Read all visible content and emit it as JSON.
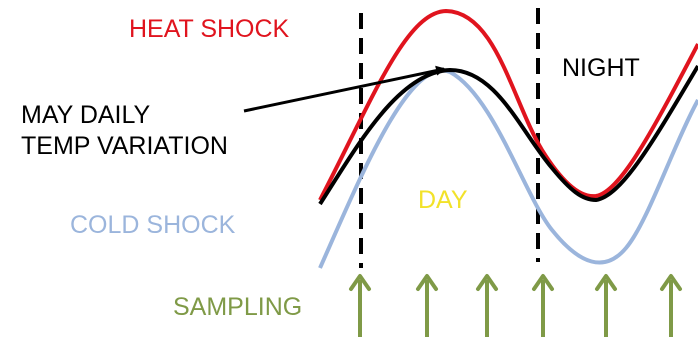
{
  "labels": {
    "heat_shock": "HEAT SHOCK",
    "night": "NIGHT",
    "may_daily_line1": "MAY DAILY",
    "may_daily_line2": "TEMP VARIATION",
    "day": "DAY",
    "cold_shock": "COLD SHOCK",
    "sampling": "SAMPLING"
  },
  "colors": {
    "heat": "#e0141e",
    "cold": "#9bb5dc",
    "daily": "#000000",
    "day": "#f2e22a",
    "sampling": "#7f9a47",
    "divider": "#000000"
  },
  "sampling_arrow_count": 6,
  "dashed_dividers": 2
}
